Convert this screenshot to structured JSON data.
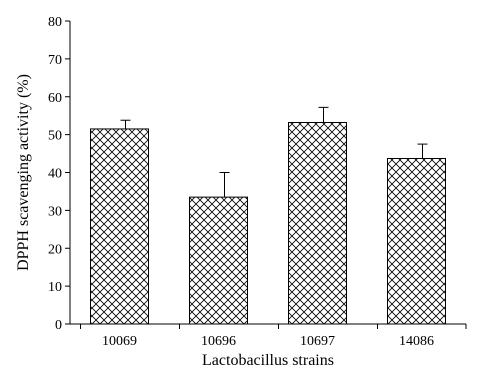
{
  "chart_data": {
    "type": "bar",
    "categories": [
      "10069",
      "10696",
      "10697",
      "14086"
    ],
    "values": [
      51.5,
      33.5,
      53.2,
      43.7
    ],
    "errors": [
      2.3,
      6.5,
      4.0,
      3.8
    ],
    "xlabel": "Lactobacillus strains",
    "ylabel": "DPPH scavenging activity (%)",
    "ylim": [
      0,
      80
    ],
    "yticks": [
      0,
      10,
      20,
      30,
      40,
      50,
      60,
      70,
      80
    ],
    "grid": false,
    "bar_fill": "crosshatch",
    "colors": {
      "bar_stroke": "#000000",
      "hatch": "#000000",
      "background": "#ffffff"
    }
  }
}
